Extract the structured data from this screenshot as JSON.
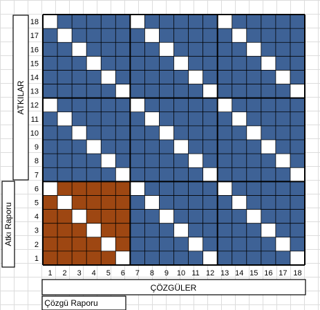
{
  "weave": {
    "warp_count": 18,
    "weft_count": 18,
    "repeat_warp": 6,
    "repeat_weft": 6,
    "colors": {
      "raised": "#3e6296",
      "lowered": "#ffffff",
      "repeat_highlight": "#9e4712",
      "grid": "#000000"
    },
    "pattern_rule": "white where (weft - 1) mod 6 == 6 - ((warp - 1) mod 6) - 1 ... i.e. each 6x6 block has a white anti-diagonal from top-left to bottom-right"
  },
  "labels": {
    "wefts_axis": "ATKILAR",
    "weft_repeat": "Atkı Raporu",
    "warps_axis": "ÇÖZGÜLER",
    "warp_repeat": "Çözgü Raporu"
  },
  "row_numbers": [
    "1",
    "2",
    "3",
    "4",
    "5",
    "6",
    "7",
    "8",
    "9",
    "10",
    "11",
    "12",
    "13",
    "14",
    "15",
    "16",
    "17",
    "18"
  ],
  "col_numbers": [
    "1",
    "2",
    "3",
    "4",
    "5",
    "6",
    "7",
    "8",
    "9",
    "10",
    "11",
    "12",
    "13",
    "14",
    "15",
    "16",
    "17",
    "18"
  ]
}
